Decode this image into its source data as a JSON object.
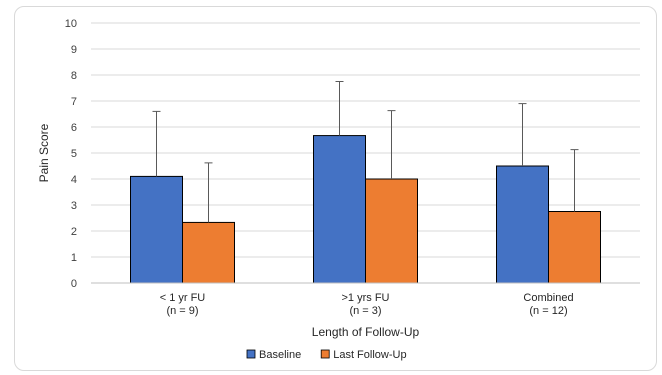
{
  "chart_data": {
    "type": "bar",
    "title": "",
    "xlabel": "Length of Follow-Up",
    "ylabel": "Pain Score",
    "ylim": [
      0,
      10
    ],
    "yticks": [
      0,
      1,
      2,
      3,
      4,
      5,
      6,
      7,
      8,
      9,
      10
    ],
    "grid": true,
    "legend_position": "bottom",
    "categories": [
      {
        "line1": "< 1 yr FU",
        "line2": "(n = 9)"
      },
      {
        "line1": ">1 yrs FU",
        "line2": "(n = 3)"
      },
      {
        "line1": "Combined",
        "line2": "(n = 12)"
      }
    ],
    "series": [
      {
        "name": "Baseline",
        "color": "#4472c4",
        "values": [
          4.1,
          5.67,
          4.5
        ],
        "error_upper": [
          6.6,
          7.75,
          6.9
        ]
      },
      {
        "name": "Last Follow-Up",
        "color": "#ed7d31",
        "values": [
          2.33,
          4.0,
          2.75
        ],
        "error_upper": [
          4.62,
          6.63,
          5.13
        ]
      }
    ]
  }
}
